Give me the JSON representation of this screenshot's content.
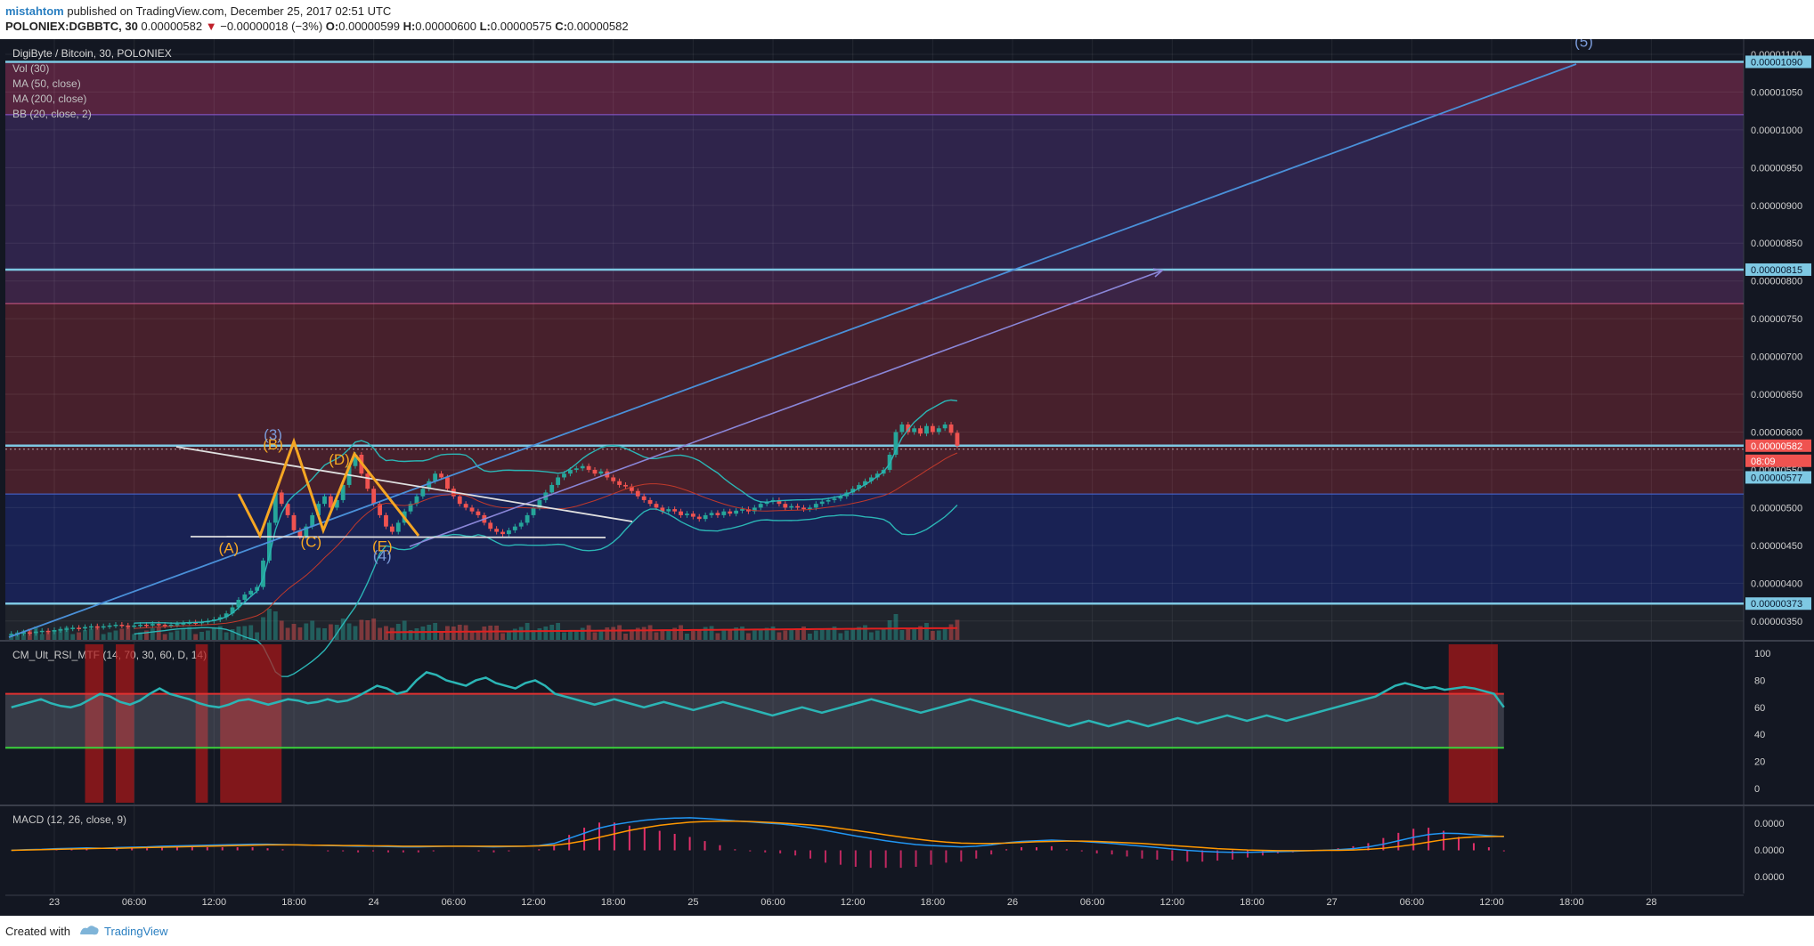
{
  "header": {
    "author": "mistahtom",
    "published_text": " published on TradingView.com, December 25, 2017 02:51 UTC",
    "symbol": "POLONIEX:DGBBTC, 30",
    "last": "0.00000582",
    "change_arrow": "▼",
    "change": "−0.00000018 (−3%)",
    "o_label": "O:",
    "o_value": "0.00000599",
    "h_label": "H:",
    "h_value": "0.00000600",
    "l_label": "L:",
    "l_value": "0.00000575",
    "c_label": "C:",
    "c_value": "0.00000582"
  },
  "legend": {
    "title": "DigiByte / Bitcoin, 30, POLONIEX",
    "items": [
      "Vol (30)",
      "MA (50, close)",
      "MA (200, close)",
      "BB (20, close, 2)"
    ]
  },
  "colors": {
    "background": "#131722",
    "price_up": "#26a69a",
    "price_down": "#ef5350",
    "fib_line": "#7ec8e3",
    "rsi_line": "#2bb5b5",
    "macd_line": "#2196f3",
    "signal_line": "#ff9800",
    "ma200": "#e02020",
    "trendline": "#4a90d9"
  },
  "chart_data": {
    "type": "candlestick",
    "price_axis": {
      "ticks": [
        "0.00001100",
        "0.00001050",
        "0.00001000",
        "0.00000950",
        "0.00000900",
        "0.00000850",
        "0.00000800",
        "0.00000750",
        "0.00000700",
        "0.00000650",
        "0.00000600",
        "0.00000550",
        "0.00000500",
        "0.00000450",
        "0.00000400",
        "0.00000350"
      ],
      "ylim": [
        3.25e-06,
        1.12e-05
      ]
    },
    "price_labels": [
      {
        "value": "0.00001090",
        "price": 1.09e-05,
        "kind": "level"
      },
      {
        "value": "0.00000815",
        "price": 8.15e-06,
        "kind": "level"
      },
      {
        "value": "0.00000582",
        "price": 5.82e-06,
        "kind": "current"
      },
      {
        "value": "08:09",
        "price": 5.62e-06,
        "kind": "countdown"
      },
      {
        "value": "0.00000577",
        "price": 5.4e-06,
        "kind": "level"
      },
      {
        "value": "0.00000373",
        "price": 3.73e-06,
        "kind": "level"
      }
    ],
    "fib_bands": [
      {
        "from": 1.09e-05,
        "to": 1.02e-05,
        "color": "#6e2a4a"
      },
      {
        "from": 1.02e-05,
        "to": 8.15e-06,
        "color": "#3a2a5a"
      },
      {
        "from": 8.15e-06,
        "to": 7.7e-06,
        "color": "#4a2a52"
      },
      {
        "from": 7.7e-06,
        "to": 5.82e-06,
        "color": "#5a2430"
      },
      {
        "from": 5.82e-06,
        "to": 5.18e-06,
        "color": "#5a2430"
      },
      {
        "from": 5.18e-06,
        "to": 3.73e-06,
        "color": "#1c2766"
      },
      {
        "from": 3.73e-06,
        "to": 3.25e-06,
        "color": "#262a30"
      }
    ],
    "time_axis": {
      "labels": [
        "23",
        "06:00",
        "12:00",
        "18:00",
        "24",
        "06:00",
        "12:00",
        "18:00",
        "25",
        "06:00",
        "12:00",
        "18:00",
        "26",
        "06:00",
        "12:00",
        "18:00",
        "27",
        "06:00",
        "12:00",
        "18:00",
        "28"
      ],
      "hour_start": 0,
      "hour_span": 141.5
    },
    "candles": {
      "start_hour": -3.5,
      "interval_hours": 0.5,
      "close": [
        3.33e-06,
        3.34e-06,
        3.35e-06,
        3.34e-06,
        3.36e-06,
        3.37e-06,
        3.36e-06,
        3.38e-06,
        3.39e-06,
        3.4e-06,
        3.41e-06,
        3.4e-06,
        3.42e-06,
        3.43e-06,
        3.42e-06,
        3.43e-06,
        3.44e-06,
        3.45e-06,
        3.44e-06,
        3.43e-06,
        3.44e-06,
        3.45e-06,
        3.44e-06,
        3.46e-06,
        3.45e-06,
        3.44e-06,
        3.45e-06,
        3.46e-06,
        3.47e-06,
        3.48e-06,
        3.47e-06,
        3.49e-06,
        3.5e-06,
        3.52e-06,
        3.55e-06,
        3.6e-06,
        3.68e-06,
        3.78e-06,
        3.85e-06,
        3.9e-06,
        3.95e-06,
        4.3e-06,
        4.8e-06,
        5.2e-06,
        5.05e-06,
        4.9e-06,
        4.7e-06,
        4.62e-06,
        4.75e-06,
        4.9e-06,
        5.05e-06,
        5.15e-06,
        5e-06,
        5.1e-06,
        5.3e-06,
        5.55e-06,
        5.7e-06,
        5.45e-06,
        5.25e-06,
        5.05e-06,
        4.9e-06,
        4.75e-06,
        4.68e-06,
        4.8e-06,
        4.95e-06,
        5.05e-06,
        5.15e-06,
        5.25e-06,
        5.35e-06,
        5.45e-06,
        5.4e-06,
        5.25e-06,
        5.15e-06,
        5.05e-06,
        5e-06,
        4.95e-06,
        4.9e-06,
        4.8e-06,
        4.72e-06,
        4.68e-06,
        4.65e-06,
        4.7e-06,
        4.75e-06,
        4.8e-06,
        4.9e-06,
        5e-06,
        5.1e-06,
        5.2e-06,
        5.3e-06,
        5.4e-06,
        5.45e-06,
        5.5e-06,
        5.52e-06,
        5.55e-06,
        5.5e-06,
        5.45e-06,
        5.48e-06,
        5.4e-06,
        5.35e-06,
        5.3e-06,
        5.28e-06,
        5.22e-06,
        5.15e-06,
        5.1e-06,
        5.05e-06,
        5e-06,
        4.95e-06,
        4.98e-06,
        4.95e-06,
        4.9e-06,
        4.92e-06,
        4.88e-06,
        4.85e-06,
        4.9e-06,
        4.93e-06,
        4.9e-06,
        4.95e-06,
        4.92e-06,
        4.96e-06,
        4.98e-06,
        4.95e-06,
        5e-06,
        5.05e-06,
        5.08e-06,
        5.1e-06,
        5.05e-06,
        5e-06,
        5.02e-06,
        5e-06,
        4.98e-06,
        5e-06,
        5.05e-06,
        5.08e-06,
        5.1e-06,
        5.12e-06,
        5.15e-06,
        5.2e-06,
        5.25e-06,
        5.3e-06,
        5.35e-06,
        5.4e-06,
        5.45e-06,
        5.5e-06,
        5.7e-06,
        6e-06,
        6.1e-06,
        6e-06,
        6.05e-06,
        5.98e-06,
        6.08e-06,
        6e-06,
        6.05e-06,
        6.1e-06,
        5.99e-06,
        5.82e-06
      ]
    },
    "wave_labels": [
      {
        "text": "(A)",
        "hour": 14.2,
        "price": 4.4e-06
      },
      {
        "text": "(B)",
        "hour": 17.8,
        "price": 5.77e-06
      },
      {
        "text": "(3)",
        "hour": 17.8,
        "price": 5.9e-06
      },
      {
        "text": "(C)",
        "hour": 20.9,
        "price": 4.48e-06
      },
      {
        "text": "(D)",
        "hour": 23.2,
        "price": 5.57e-06
      },
      {
        "text": "(E)",
        "hour": 26.7,
        "price": 4.42e-06
      },
      {
        "text": "(4)",
        "hour": 26.7,
        "price": 4.3e-06
      },
      {
        "text": "(5)",
        "hour": 124.5,
        "price": 1.11e-05
      }
    ],
    "rsi": {
      "ticks": [
        "100",
        "80",
        "60",
        "40",
        "20",
        "0"
      ],
      "ylim": [
        -12,
        108
      ],
      "overbought": 70,
      "oversold": 30,
      "values": [
        60,
        62,
        64,
        66,
        63,
        61,
        60,
        62,
        66,
        70,
        68,
        64,
        62,
        65,
        70,
        74,
        70,
        68,
        66,
        63,
        61,
        60,
        62,
        65,
        66,
        64,
        62,
        64,
        66,
        65,
        63,
        64,
        66,
        64,
        65,
        68,
        72,
        76,
        74,
        70,
        72,
        80,
        86,
        84,
        80,
        78,
        76,
        80,
        82,
        78,
        76,
        74,
        78,
        80,
        76,
        70,
        68,
        66,
        64,
        62,
        64,
        66,
        64,
        62,
        60,
        62,
        64,
        62,
        60,
        58,
        60,
        62,
        64,
        62,
        60,
        58,
        56,
        54,
        56,
        58,
        60,
        58,
        56,
        58,
        60,
        62,
        64,
        66,
        64,
        62,
        60,
        58,
        56,
        58,
        60,
        62,
        64,
        66,
        64,
        62,
        60,
        58,
        56,
        54,
        52,
        50,
        48,
        46,
        48,
        50,
        48,
        46,
        48,
        50,
        48,
        46,
        48,
        50,
        52,
        50,
        48,
        50,
        52,
        54,
        52,
        50,
        52,
        54,
        52,
        50,
        52,
        54,
        56,
        58,
        60,
        62,
        64,
        66,
        68,
        72,
        76,
        78,
        76,
        74,
        75,
        73,
        74,
        75,
        74,
        72,
        70,
        60
      ],
      "highlight_hours": [
        [
          2.5,
          4.0
        ],
        [
          5.0,
          6.5
        ],
        [
          11.5,
          12.5
        ],
        [
          13.5,
          18.5
        ],
        [
          113.5,
          117.5
        ]
      ]
    },
    "macd": {
      "ticks": [
        "0.0000",
        "0.0000",
        "0.0000"
      ],
      "ylim": [
        -1.0,
        1.0
      ],
      "macd": [
        0.0,
        0.02,
        0.03,
        0.05,
        0.06,
        0.07,
        0.06,
        0.08,
        0.09,
        0.1,
        0.12,
        0.13,
        0.14,
        0.15,
        0.16,
        0.17,
        0.18,
        0.18,
        0.17,
        0.16,
        0.15,
        0.14,
        0.13,
        0.12,
        0.12,
        0.11,
        0.1,
        0.1,
        0.11,
        0.12,
        0.12,
        0.11,
        0.1,
        0.11,
        0.12,
        0.14,
        0.2,
        0.35,
        0.5,
        0.65,
        0.75,
        0.82,
        0.88,
        0.92,
        0.94,
        0.95,
        0.93,
        0.9,
        0.86,
        0.83,
        0.8,
        0.77,
        0.72,
        0.66,
        0.58,
        0.5,
        0.42,
        0.35,
        0.28,
        0.22,
        0.17,
        0.14,
        0.12,
        0.1,
        0.12,
        0.16,
        0.22,
        0.26,
        0.28,
        0.3,
        0.28,
        0.26,
        0.23,
        0.2,
        0.16,
        0.12,
        0.08,
        0.04,
        0.0,
        -0.03,
        -0.05,
        -0.06,
        -0.06,
        -0.05,
        -0.04,
        -0.03,
        -0.01,
        0.0,
        0.02,
        0.05,
        0.1,
        0.18,
        0.28,
        0.38,
        0.46,
        0.5,
        0.49,
        0.46,
        0.43,
        0.4
      ],
      "signal": [
        0.0,
        0.01,
        0.02,
        0.03,
        0.04,
        0.05,
        0.06,
        0.06,
        0.07,
        0.08,
        0.09,
        0.1,
        0.11,
        0.12,
        0.13,
        0.14,
        0.15,
        0.16,
        0.16,
        0.16,
        0.15,
        0.15,
        0.14,
        0.14,
        0.13,
        0.13,
        0.12,
        0.12,
        0.12,
        0.12,
        0.12,
        0.12,
        0.12,
        0.12,
        0.12,
        0.13,
        0.15,
        0.2,
        0.28,
        0.38,
        0.48,
        0.58,
        0.66,
        0.73,
        0.78,
        0.82,
        0.84,
        0.85,
        0.85,
        0.84,
        0.82,
        0.8,
        0.77,
        0.74,
        0.7,
        0.64,
        0.58,
        0.52,
        0.45,
        0.39,
        0.33,
        0.28,
        0.24,
        0.21,
        0.2,
        0.2,
        0.21,
        0.23,
        0.25,
        0.26,
        0.27,
        0.27,
        0.26,
        0.24,
        0.22,
        0.2,
        0.17,
        0.14,
        0.11,
        0.08,
        0.05,
        0.03,
        0.01,
        0.0,
        -0.01,
        -0.01,
        -0.01,
        0.0,
        0.0,
        0.01,
        0.03,
        0.06,
        0.11,
        0.17,
        0.24,
        0.31,
        0.36,
        0.39,
        0.4,
        0.41
      ]
    }
  },
  "footer": {
    "created_with": "Created with",
    "brand": "TradingView"
  }
}
